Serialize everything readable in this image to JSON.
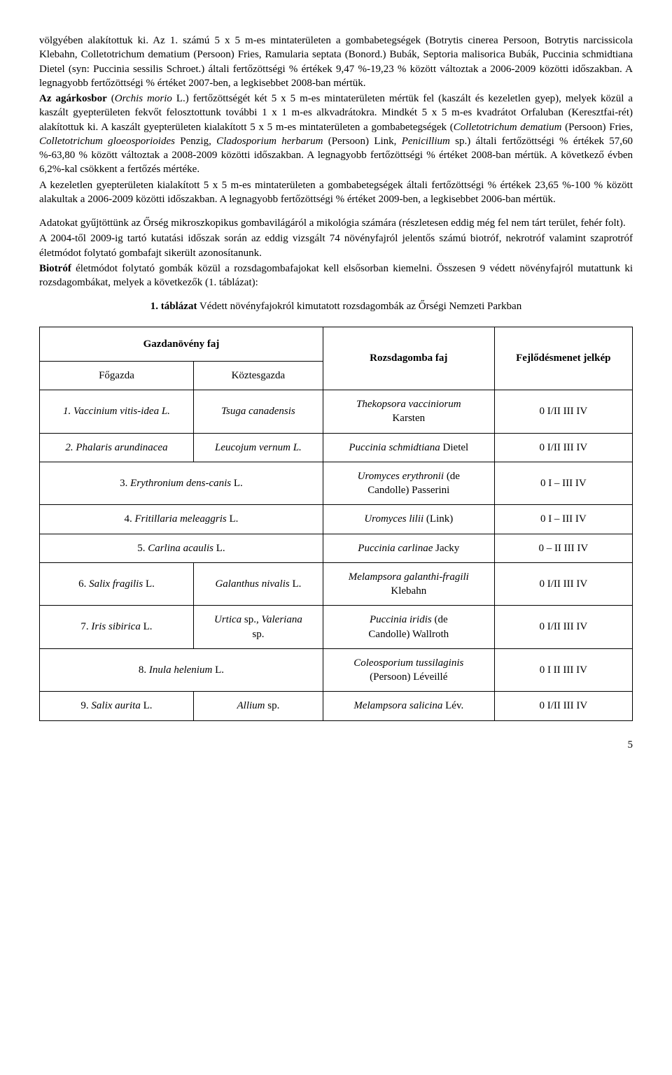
{
  "paragraphs": {
    "p1": "völgyében alakítottuk ki. Az 1. számú 5 x 5 m-es mintaterületen a gombabetegségek (Botrytis cinerea Persoon, Botrytis narcissicola Klebahn, Colletotrichum dematium (Persoon) Fries, Ramularia septata (Bonord.) Bubák, Septoria malisorica Bubák, Puccinia schmidtiana Dietel (syn: Puccinia sessilis Schroet.) általi fertőzöttségi % értékek 9,47 %-19,23 % között változtak a 2006-2009 közötti időszakban. A legnagyobb fertőzöttségi % értéket 2007-ben, a legkisebbet 2008-ban mértük.",
    "p2": "Az agárkosbor (Orchis morio L.) fertőzöttségét két 5 x 5 m-es mintaterületen mértük fel (kaszált és kezeletlen gyep), melyek közül a kaszált gyepterületen fekvőt felosztottunk további 1 x 1 m-es alkvadrátokra. Mindkét 5 x 5 m-es kvadrátot Orfaluban (Keresztfai-rét) alakítottuk ki. A kaszált gyepterületen kialakított 5 x 5 m-es mintaterületen a gombabetegségek (Colletotrichum dematium (Persoon) Fries, Colletotrichum gloeosporioides Penzig, Cladosporium herbarum (Persoon) Link, Penicillium sp.) általi fertőzöttségi % értékek 57,60 %-63,80 % között változtak a 2008-2009 közötti időszakban. A legnagyobb fertőzöttségi % értéket 2008-ban mértük. A következő évben 6,2%-kal csökkent a fertőzés mértéke.",
    "p3": "A kezeletlen gyepterületen kialakított 5 x 5 m-es mintaterületen a gombabetegségek általi fertőzöttségi % értékek 23,65 %-100 % között alakultak a 2006-2009 közötti időszakban. A legnagyobb fertőzöttségi % értéket 2009-ben, a legkisebbet 2006-ban mértük.",
    "p4": "Adatokat gyűjtöttünk az Őrség mikroszkopikus gombavilágáról a mikológia számára (részletesen eddig még fel nem tárt terület, fehér folt).",
    "p5": "A 2004-től 2009-ig tartó kutatási időszak során az eddig vizsgált 74 növényfajról jelentős számú biotróf, nekrotróf valamint szaprotróf életmódot folytató gombafajt sikerült azonosítanunk.",
    "p6a": "Biotróf",
    "p6b": " életmódot folytató gombák közül a rozsdagombafajokat kell elsősorban kiemelni. Összesen 9 védett növényfajról mutattunk ki rozsdagombákat, melyek a következők (1. táblázat):"
  },
  "tableTitle": {
    "num": "1.",
    "label": "táblázat",
    "rest": " Védett növényfajokról kimutatott rozsdagombák az Őrségi Nemzeti Parkban"
  },
  "tableHeaders": {
    "hostGroup": "Gazdanövény faj",
    "mainHost": "Főgazda",
    "altHost": "Köztesgazda",
    "rustSpecies": "Rozsdagomba faj",
    "devCode": "Fejlődésmenet jelkép"
  },
  "rows": [
    {
      "host": "1. Vaccinium vitis-idea L.",
      "alt": "Tsuga canadensis",
      "rust": "Thekopsora vacciniorum Karsten",
      "code": "0 I/II III IV"
    },
    {
      "host": "2. Phalaris arundinacea",
      "alt": "Leucojum vernum L.",
      "rust": "Puccinia schmidtiana Dietel",
      "code": "0 I/II III IV"
    },
    {
      "host_span": "3. Erythronium dens-canis L.",
      "rust": "Uromyces erythronii (de Candolle) Passerini",
      "code": "0 I – III IV"
    },
    {
      "host_span": "4. Fritillaria meleaggris L.",
      "rust": "Uromyces lilii (Link)",
      "code": "0 I – III IV"
    },
    {
      "host_span": "5. Carlina acaulis L.",
      "rust": "Puccinia carlinae Jacky",
      "code": "0 – II III IV"
    },
    {
      "host": "6. Salix fragilis L.",
      "alt": "Galanthus nivalis L.",
      "rust": "Melampsora galanthi-fragili Klebahn",
      "code": "0 I/II III IV"
    },
    {
      "host": "7. Iris sibirica L.",
      "alt": "Urtica sp., Valeriana sp.",
      "rust": "Puccinia iridis (de Candolle) Wallroth",
      "code": "0 I/II III IV"
    },
    {
      "host_span": "8. Inula helenium L.",
      "rust": "Coleosporium tussilaginis (Persoon) Léveillé",
      "code": "0 I II III IV"
    },
    {
      "host": "9. Salix aurita L.",
      "alt": "Allium sp.",
      "rust": "Melampsora salicina Lév.",
      "code": "0 I/II III IV"
    }
  ],
  "pageNumber": "5"
}
